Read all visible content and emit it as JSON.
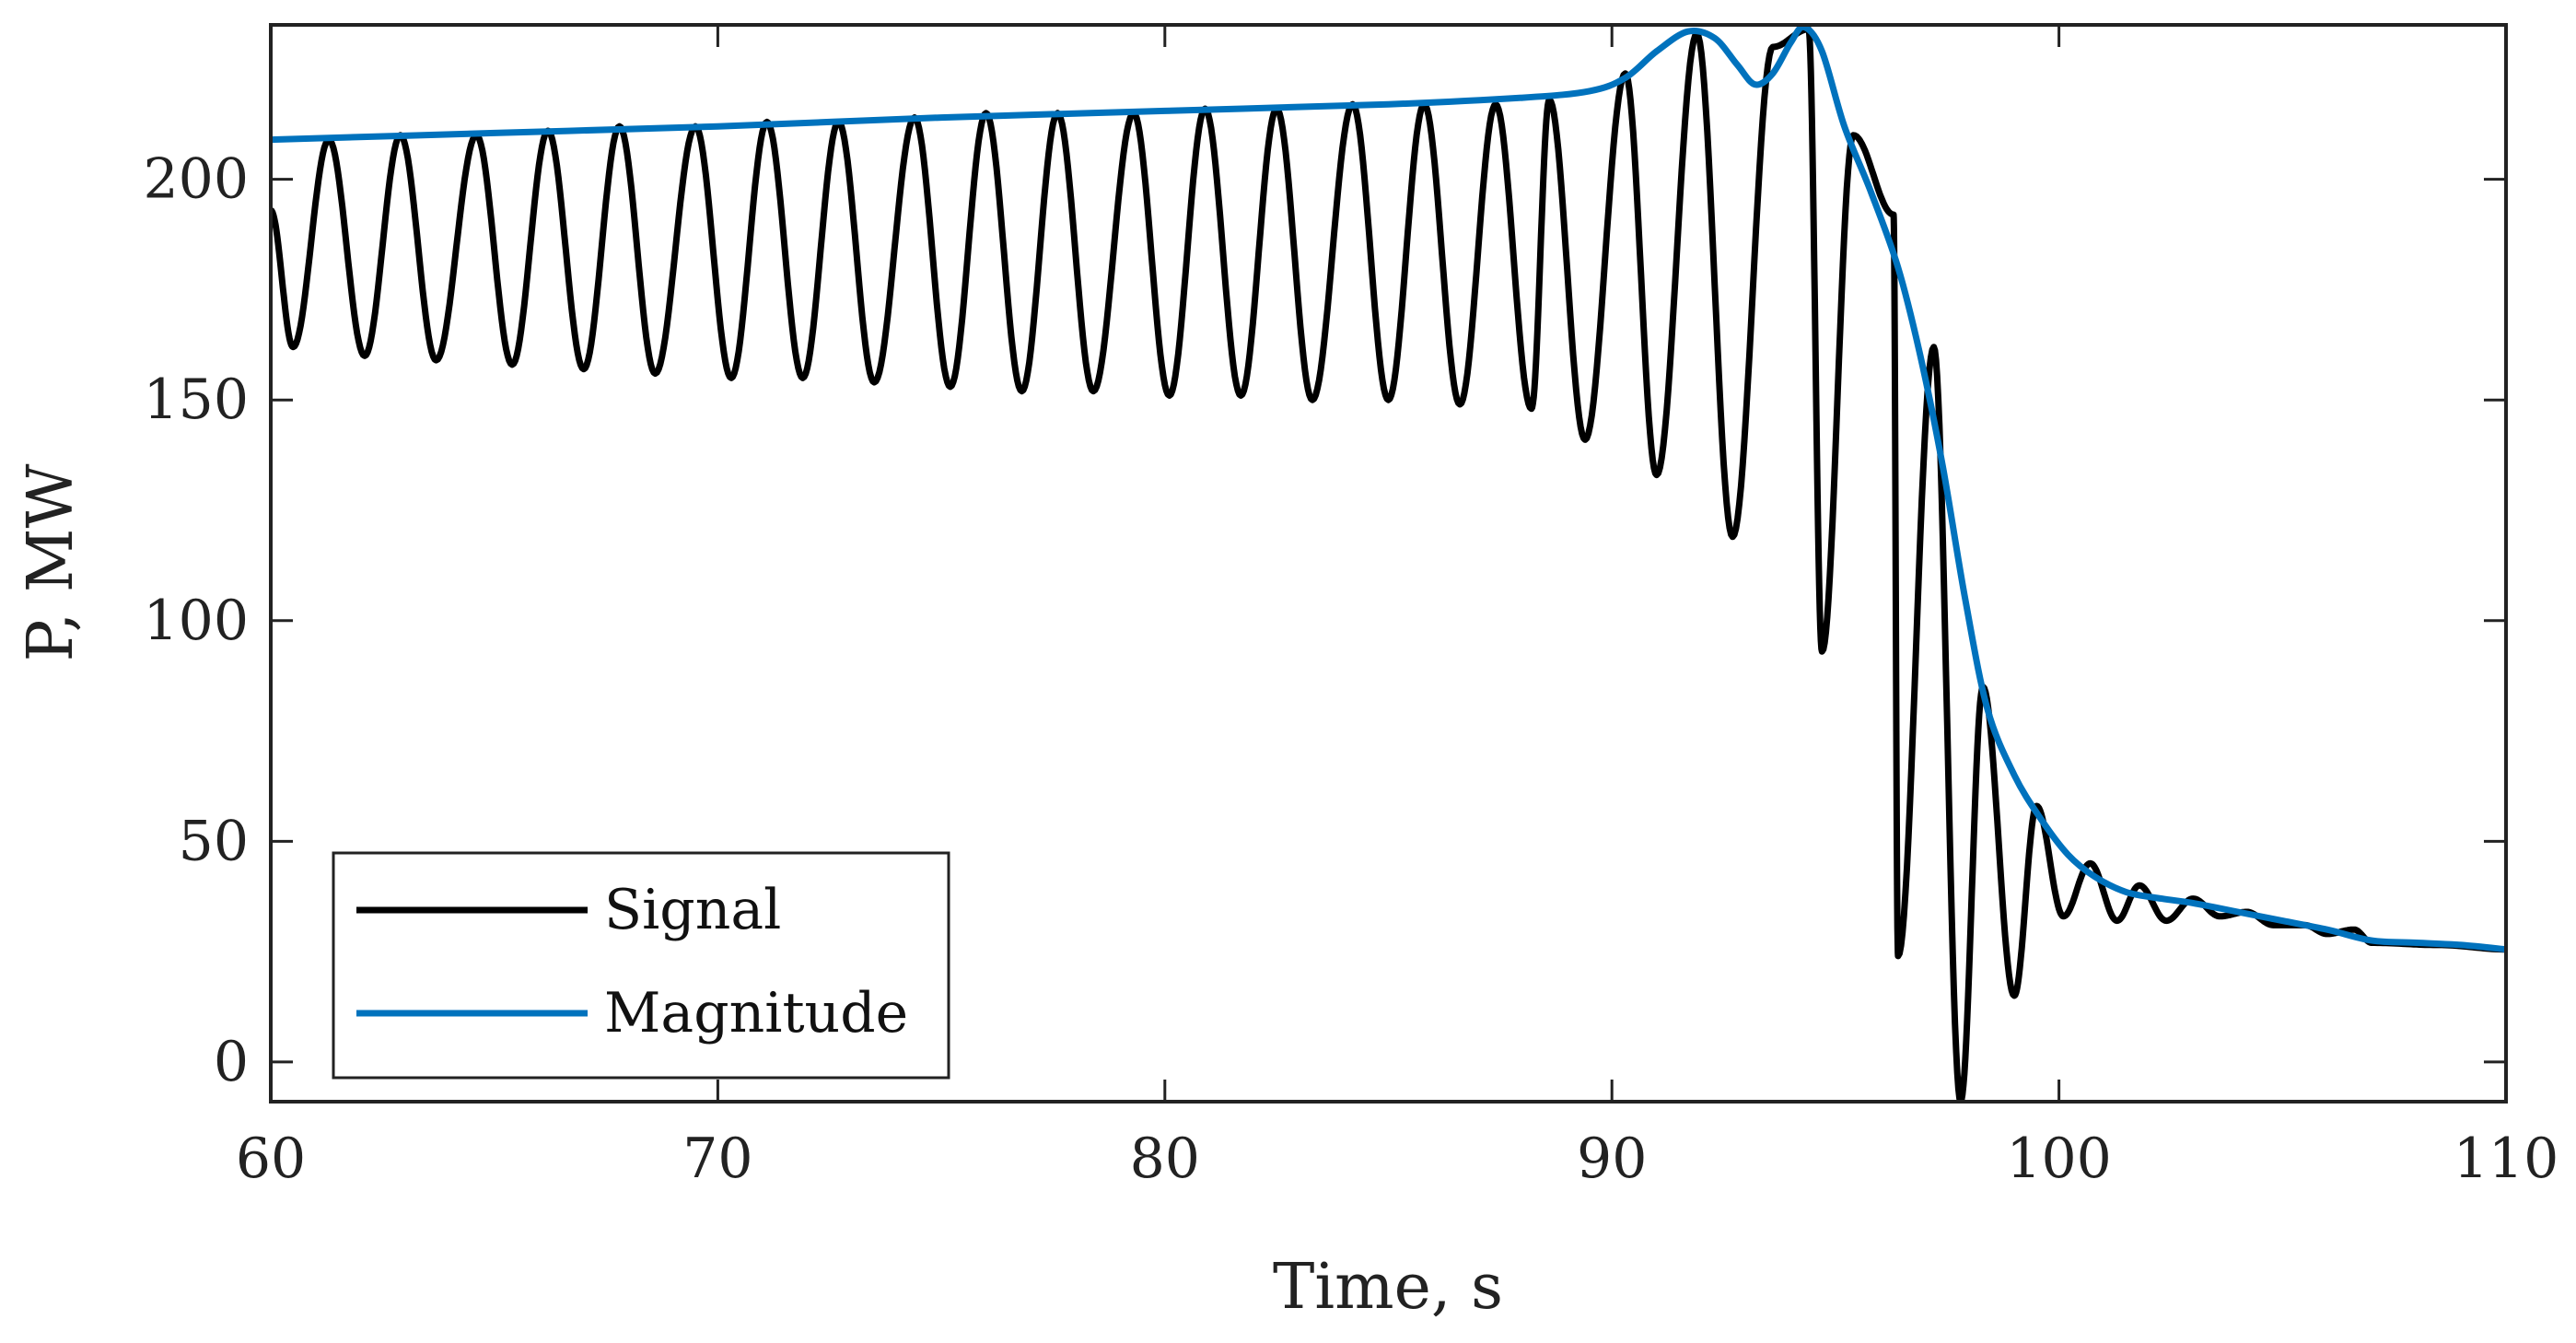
{
  "chart_data": {
    "type": "line",
    "xlabel": "Time, s",
    "ylabel": "P, MW",
    "xlim": [
      60,
      110
    ],
    "ylim": [
      -9,
      235
    ],
    "xticks": [
      60,
      70,
      80,
      90,
      100,
      110
    ],
    "yticks": [
      0,
      50,
      100,
      150,
      200
    ],
    "grid": false,
    "legend_location": "bottom-left",
    "series": [
      {
        "name": "Signal",
        "color": "#000000",
        "style": "oscillation",
        "period_s": 1.67,
        "peaks": [
          {
            "t": 61.3,
            "v": 209
          },
          {
            "t": 62.9,
            "v": 210
          },
          {
            "t": 64.6,
            "v": 210
          },
          {
            "t": 66.2,
            "v": 211
          },
          {
            "t": 67.8,
            "v": 212
          },
          {
            "t": 69.5,
            "v": 212
          },
          {
            "t": 71.1,
            "v": 213
          },
          {
            "t": 72.7,
            "v": 213
          },
          {
            "t": 74.4,
            "v": 214
          },
          {
            "t": 76.0,
            "v": 215
          },
          {
            "t": 77.6,
            "v": 215
          },
          {
            "t": 79.3,
            "v": 215
          },
          {
            "t": 80.9,
            "v": 216
          },
          {
            "t": 82.5,
            "v": 216
          },
          {
            "t": 84.2,
            "v": 217
          },
          {
            "t": 85.8,
            "v": 217
          },
          {
            "t": 87.4,
            "v": 217
          },
          {
            "t": 88.6,
            "v": 218
          },
          {
            "t": 90.3,
            "v": 224
          },
          {
            "t": 91.9,
            "v": 233
          },
          {
            "t": 93.6,
            "v": 230
          },
          {
            "t": 94.4,
            "v": 234
          },
          {
            "t": 95.4,
            "v": 210
          },
          {
            "t": 96.3,
            "v": 192
          },
          {
            "t": 97.2,
            "v": 162
          },
          {
            "t": 98.3,
            "v": 85
          },
          {
            "t": 99.5,
            "v": 58
          },
          {
            "t": 100.7,
            "v": 45
          },
          {
            "t": 101.8,
            "v": 40
          },
          {
            "t": 103.0,
            "v": 37
          },
          {
            "t": 104.2,
            "v": 34
          },
          {
            "t": 105.5,
            "v": 31
          },
          {
            "t": 106.6,
            "v": 30
          }
        ],
        "troughs": [
          {
            "t": 60.5,
            "v": 162
          },
          {
            "t": 62.1,
            "v": 160
          },
          {
            "t": 63.7,
            "v": 159
          },
          {
            "t": 65.4,
            "v": 158
          },
          {
            "t": 67.0,
            "v": 157
          },
          {
            "t": 68.6,
            "v": 156
          },
          {
            "t": 70.3,
            "v": 155
          },
          {
            "t": 71.9,
            "v": 155
          },
          {
            "t": 73.5,
            "v": 154
          },
          {
            "t": 75.2,
            "v": 153
          },
          {
            "t": 76.8,
            "v": 152
          },
          {
            "t": 78.4,
            "v": 152
          },
          {
            "t": 80.1,
            "v": 151
          },
          {
            "t": 81.7,
            "v": 151
          },
          {
            "t": 83.3,
            "v": 150
          },
          {
            "t": 85.0,
            "v": 150
          },
          {
            "t": 86.6,
            "v": 149
          },
          {
            "t": 88.2,
            "v": 148
          },
          {
            "t": 89.4,
            "v": 141
          },
          {
            "t": 91.0,
            "v": 133
          },
          {
            "t": 92.7,
            "v": 119
          },
          {
            "t": 94.7,
            "v": 93
          },
          {
            "t": 96.4,
            "v": 24
          },
          {
            "t": 97.8,
            "v": -9
          },
          {
            "t": 99.0,
            "v": 15
          },
          {
            "t": 100.1,
            "v": 33
          },
          {
            "t": 101.3,
            "v": 32
          },
          {
            "t": 102.4,
            "v": 32
          },
          {
            "t": 103.6,
            "v": 33
          },
          {
            "t": 104.8,
            "v": 31
          },
          {
            "t": 106.0,
            "v": 29
          }
        ],
        "end": [
          {
            "t": 107.0,
            "v": 27
          },
          {
            "t": 108.5,
            "v": 26.5
          },
          {
            "t": 110.0,
            "v": 25.5
          }
        ]
      },
      {
        "name": "Magnitude",
        "color": "#0072BD",
        "style": "line",
        "points": [
          {
            "x": 60,
            "y": 209
          },
          {
            "x": 65,
            "y": 210.5
          },
          {
            "x": 70,
            "y": 212
          },
          {
            "x": 75,
            "y": 214
          },
          {
            "x": 80,
            "y": 215.5
          },
          {
            "x": 85,
            "y": 217
          },
          {
            "x": 88,
            "y": 218.5
          },
          {
            "x": 89.5,
            "y": 220
          },
          {
            "x": 90.3,
            "y": 223
          },
          {
            "x": 91,
            "y": 229
          },
          {
            "x": 91.7,
            "y": 233.5
          },
          {
            "x": 92.3,
            "y": 232
          },
          {
            "x": 92.8,
            "y": 226
          },
          {
            "x": 93.2,
            "y": 221.5
          },
          {
            "x": 93.6,
            "y": 224
          },
          {
            "x": 94.0,
            "y": 231
          },
          {
            "x": 94.3,
            "y": 234.5
          },
          {
            "x": 94.7,
            "y": 229
          },
          {
            "x": 95.2,
            "y": 212
          },
          {
            "x": 95.8,
            "y": 197
          },
          {
            "x": 96.4,
            "y": 180
          },
          {
            "x": 96.9,
            "y": 160
          },
          {
            "x": 97.4,
            "y": 135
          },
          {
            "x": 97.9,
            "y": 105
          },
          {
            "x": 98.4,
            "y": 80
          },
          {
            "x": 99.0,
            "y": 65
          },
          {
            "x": 99.6,
            "y": 55
          },
          {
            "x": 100.2,
            "y": 47
          },
          {
            "x": 100.8,
            "y": 42
          },
          {
            "x": 101.5,
            "y": 38.5
          },
          {
            "x": 102.3,
            "y": 37
          },
          {
            "x": 103.0,
            "y": 36
          },
          {
            "x": 104.0,
            "y": 34
          },
          {
            "x": 105.0,
            "y": 32
          },
          {
            "x": 106.0,
            "y": 30
          },
          {
            "x": 107.0,
            "y": 27.5
          },
          {
            "x": 108.0,
            "y": 27
          },
          {
            "x": 109.0,
            "y": 26.5
          },
          {
            "x": 110.0,
            "y": 25.5
          }
        ]
      }
    ]
  }
}
